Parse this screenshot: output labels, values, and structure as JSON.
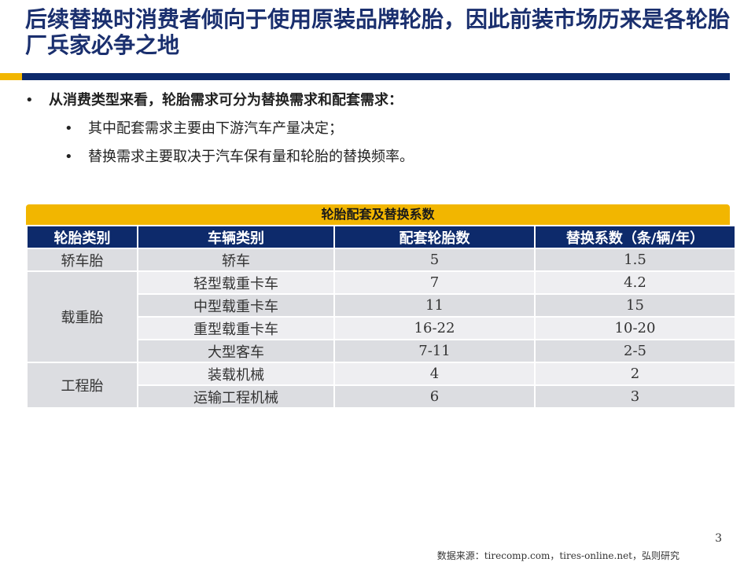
{
  "slide": {
    "title": "后续替换时消费者倾向于使用原装品牌轮胎，因此前装市场历来是各轮胎厂兵家必争之地",
    "page_number": "3",
    "source": "数据来源：tirecomp.com，tires-online.net，弘则研究",
    "colors": {
      "navy": "#0d2a6b",
      "gold": "#f2b600",
      "cell_gray": "#dcdde1",
      "cell_light": "#eeeef1"
    }
  },
  "bullets": {
    "main": "从消费类型来看，轮胎需求可分为替换需求和配套需求：",
    "sub": [
      "其中配套需求主要由下游汽车产量决定；",
      "替换需求主要取决于汽车保有量和轮胎的替换频率。"
    ],
    "marker": "•"
  },
  "table": {
    "caption": "轮胎配套及替换系数",
    "headers": [
      "轮胎类别",
      "车辆类别",
      "配套轮胎数",
      "替换系数（条/辆/年）"
    ],
    "groups": [
      {
        "category": "轿车胎",
        "rows": [
          {
            "vehicle": "轿车",
            "oe": "5",
            "replace": "1.5"
          }
        ]
      },
      {
        "category": "载重胎",
        "rows": [
          {
            "vehicle": "轻型载重卡车",
            "oe": "7",
            "replace": "4.2"
          },
          {
            "vehicle": "中型载重卡车",
            "oe": "11",
            "replace": "15"
          },
          {
            "vehicle": "重型载重卡车",
            "oe": "16-22",
            "replace": "10-20"
          },
          {
            "vehicle": "大型客车",
            "oe": "7-11",
            "replace": "2-5"
          }
        ]
      },
      {
        "category": "工程胎",
        "rows": [
          {
            "vehicle": "装载机械",
            "oe": "4",
            "replace": "2"
          },
          {
            "vehicle": "运输工程机械",
            "oe": "6",
            "replace": "3"
          }
        ]
      }
    ]
  }
}
